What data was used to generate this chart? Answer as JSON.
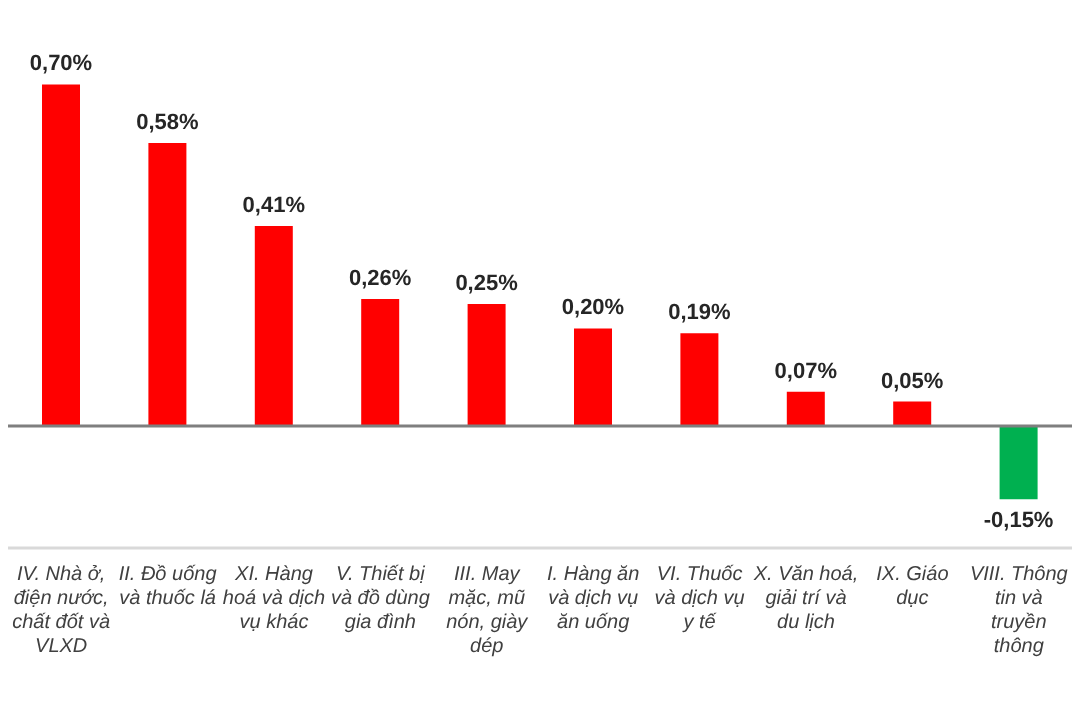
{
  "chart_data": {
    "type": "bar",
    "categories": [
      "IV. Nhà ở, điện nước, chất đốt và VLXD",
      "II. Đồ uống và thuốc lá",
      "XI. Hàng hoá và dịch vụ khác",
      "V. Thiết bị và đồ dùng gia đình",
      "III. May mặc, mũ nón, giày dép",
      "I. Hàng ăn và dịch vụ ăn uống",
      "VI. Thuốc và dịch vụ y tế",
      "X. Văn hoá, giải trí và du lịch",
      "IX. Giáo dục",
      "VIII. Thông tin và truyền thông"
    ],
    "values": [
      0.7,
      0.58,
      0.41,
      0.26,
      0.25,
      0.2,
      0.19,
      0.07,
      0.05,
      -0.15
    ],
    "colors": [
      "#ff0000",
      "#ff0000",
      "#ff0000",
      "#ff0000",
      "#ff0000",
      "#ff0000",
      "#ff0000",
      "#ff0000",
      "#ff0000",
      "#00b050"
    ],
    "value_labels": [
      "0,70%",
      "0,58%",
      "0,41%",
      "0,26%",
      "0,25%",
      "0,20%",
      "0,19%",
      "0,07%",
      "0,05%",
      "-0,15%"
    ],
    "tick_labels": "x",
    "legend": false
  }
}
